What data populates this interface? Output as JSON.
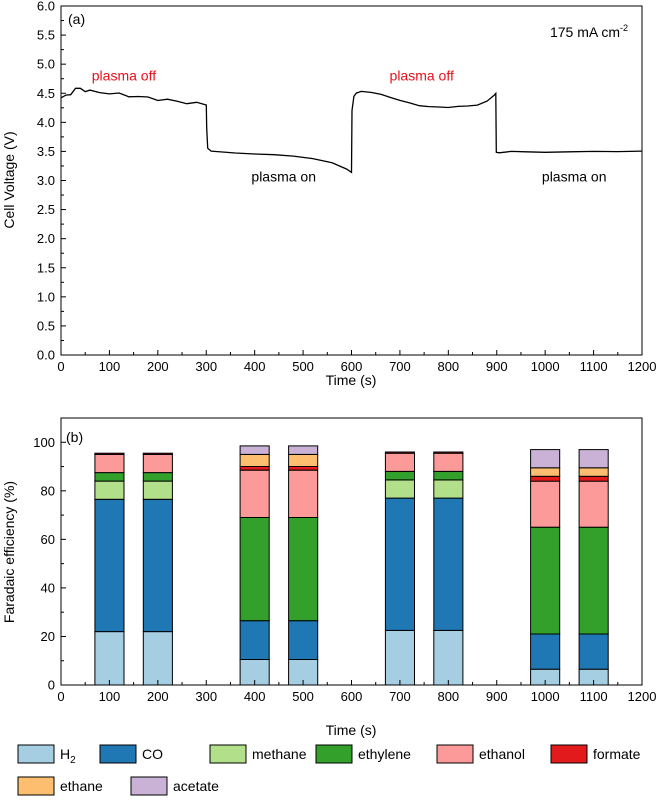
{
  "chart_data": [
    {
      "type": "line",
      "panel_label": "(a)",
      "annotation": "175 mA cm",
      "annotation_sup": "-2",
      "xlabel": "Time (s)",
      "ylabel": "Cell Voltage (V)",
      "xlim": [
        0,
        1200
      ],
      "ylim": [
        0,
        6.0
      ],
      "xticks": [
        0,
        100,
        200,
        300,
        400,
        500,
        600,
        700,
        800,
        900,
        1000,
        1100,
        1200
      ],
      "yticks": [
        "0.0",
        "0.5",
        "1.0",
        "1.5",
        "2.0",
        "2.5",
        "3.0",
        "3.5",
        "4.0",
        "4.5",
        "5.0",
        "5.5",
        "6.0"
      ],
      "grid": false,
      "labels": [
        {
          "text": "plasma off",
          "x": 130,
          "y": 4.72,
          "color": "#e8101c"
        },
        {
          "text": "plasma on",
          "x": 460,
          "y": 2.98,
          "color": "#000000"
        },
        {
          "text": "plasma off",
          "x": 745,
          "y": 4.72,
          "color": "#e8101c"
        },
        {
          "text": "plasma on",
          "x": 1060,
          "y": 2.98,
          "color": "#000000"
        }
      ],
      "series": [
        {
          "color": "#000000",
          "x": [
            0,
            10,
            20,
            30,
            40,
            50,
            60,
            80,
            100,
            120,
            140,
            160,
            180,
            200,
            220,
            240,
            260,
            280,
            300,
            301,
            303,
            310,
            330,
            360,
            400,
            440,
            480,
            520,
            560,
            590,
            600,
            601,
            605,
            610,
            620,
            640,
            660,
            680,
            700,
            720,
            740,
            760,
            780,
            800,
            820,
            840,
            860,
            880,
            895,
            898,
            899,
            905,
            930,
            960,
            1000,
            1050,
            1100,
            1150,
            1200
          ],
          "y": [
            4.42,
            4.45,
            4.5,
            4.57,
            4.58,
            4.55,
            4.53,
            4.52,
            4.5,
            4.48,
            4.46,
            4.44,
            4.42,
            4.4,
            4.38,
            4.36,
            4.34,
            4.32,
            4.3,
            3.9,
            3.55,
            3.51,
            3.49,
            3.47,
            3.46,
            3.44,
            3.42,
            3.38,
            3.3,
            3.2,
            3.14,
            4.2,
            4.45,
            4.5,
            4.53,
            4.52,
            4.48,
            4.43,
            4.38,
            4.33,
            4.29,
            4.27,
            4.26,
            4.26,
            4.27,
            4.28,
            4.3,
            4.36,
            4.47,
            4.5,
            3.48,
            3.48,
            3.5,
            3.49,
            3.49,
            3.49,
            3.5,
            3.5,
            3.5
          ]
        }
      ]
    },
    {
      "type": "bar",
      "stacked": true,
      "panel_label": "(b)",
      "xlabel": "Time (s)",
      "ylabel": "Faradaic efficiency (%)",
      "xlim": [
        0,
        1200
      ],
      "ylim": [
        0,
        110
      ],
      "xticks": [
        0,
        100,
        200,
        300,
        400,
        500,
        600,
        700,
        800,
        900,
        1000,
        1100,
        1200
      ],
      "yticks": [
        0,
        20,
        40,
        60,
        80,
        100
      ],
      "grid": false,
      "x": [
        100,
        200,
        400,
        500,
        700,
        800,
        1000,
        1100
      ],
      "bar_width": 60,
      "series": [
        {
          "name": "H",
          "name_sub": "2",
          "color": "#a6cee3",
          "values": [
            22,
            22,
            10.5,
            10.5,
            22.5,
            22.5,
            6.5,
            6.5
          ]
        },
        {
          "name": "CO",
          "color": "#1f78b4",
          "values": [
            54.5,
            54.5,
            16,
            16,
            54.5,
            54.5,
            14.5,
            14.5
          ]
        },
        {
          "name": "methane",
          "color": "#b2df8a",
          "values": [
            7.5,
            7.5,
            0,
            0,
            7.5,
            7.5,
            0,
            0
          ]
        },
        {
          "name": "ethylene",
          "color": "#33a02c",
          "values": [
            3.5,
            3.5,
            42.5,
            42.5,
            3.5,
            3.5,
            44,
            44
          ]
        },
        {
          "name": "ethanol",
          "color": "#fb9a99",
          "values": [
            7.5,
            7.5,
            19.5,
            19.5,
            7.5,
            7.5,
            19,
            19
          ]
        },
        {
          "name": "formate",
          "color": "#e31a1c",
          "values": [
            0.5,
            0.5,
            1.5,
            1.5,
            0.5,
            0.5,
            2,
            2
          ]
        },
        {
          "name": "ethane",
          "color": "#fdbf6f",
          "values": [
            0,
            0,
            5,
            5,
            0,
            0,
            3.5,
            3.5
          ]
        },
        {
          "name": "acetate",
          "color": "#cab2d6",
          "values": [
            0,
            0,
            3.5,
            3.5,
            0,
            0,
            7.5,
            7.5
          ]
        }
      ],
      "legend_position": "bottom"
    }
  ]
}
